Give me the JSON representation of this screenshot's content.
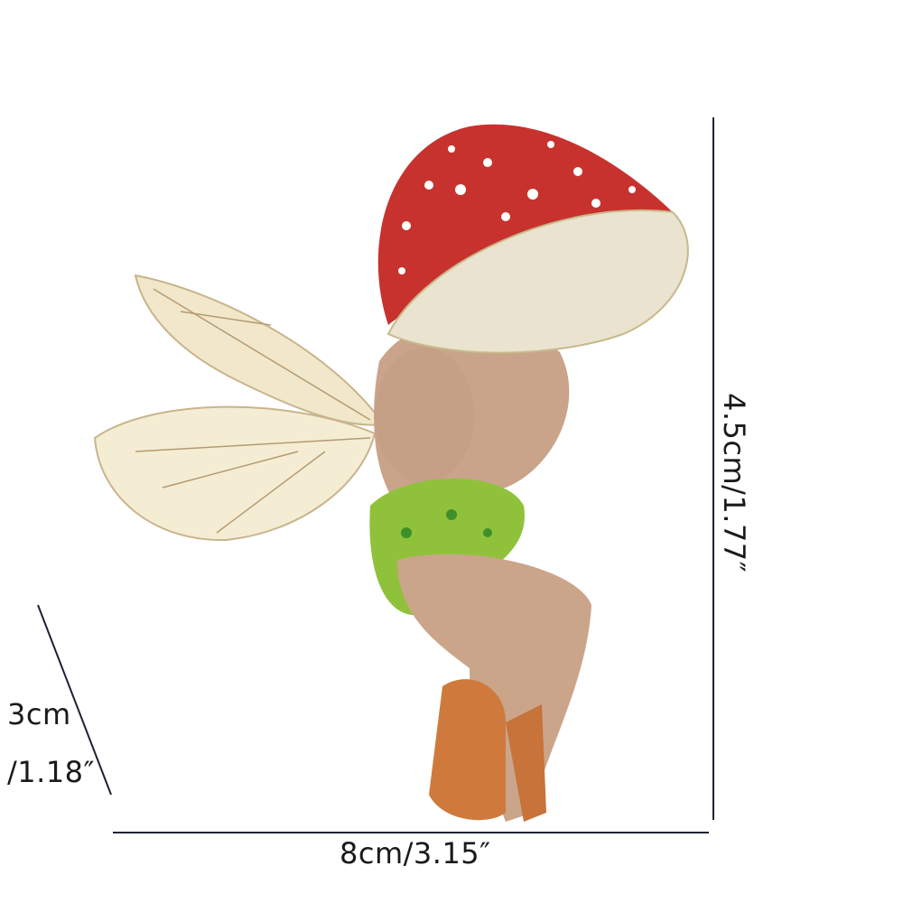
{
  "dimensions": {
    "height": "4.5cm/1.77″",
    "width": "8cm/3.15″",
    "depth_line1": "3cm",
    "depth_line2": "/1.18″"
  },
  "colors": {
    "mushroom_cap": "#c8322e",
    "gills": "#e9e3cf",
    "skin": "#caa58a",
    "moss": "#8fc23a",
    "wing": "#f3ecd2",
    "dimension_line": "#1c2233"
  }
}
